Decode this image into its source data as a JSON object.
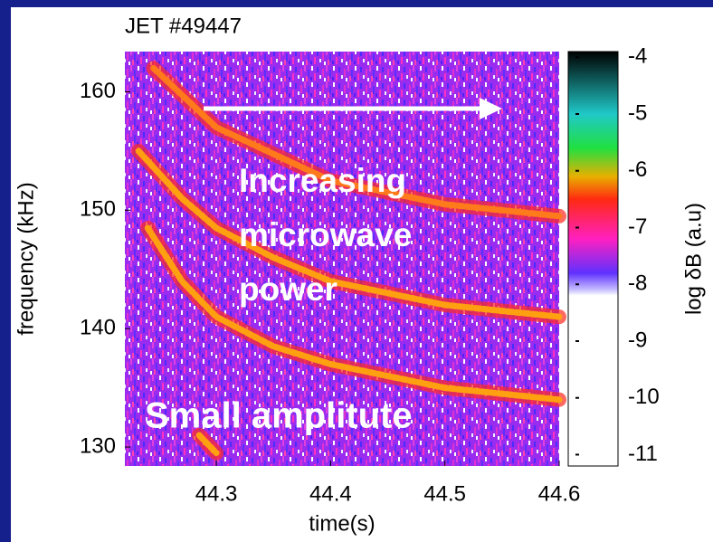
{
  "chart_data": {
    "type": "spectrogram",
    "title": "JET #49447",
    "xlabel": "time(s)",
    "ylabel": "frequency (kHz)",
    "xlim": [
      44.22,
      44.6
    ],
    "xticks": [
      44.3,
      44.4,
      44.5,
      44.6
    ],
    "ylim": [
      128.4,
      163.4
    ],
    "yticks": [
      130,
      140,
      150,
      160
    ],
    "series": [
      {
        "color": "#ff7a1a",
        "x": [
          44.245,
          44.3,
          44.4,
          44.5,
          44.6
        ],
        "values": [
          162,
          157,
          152.5,
          150.5,
          149.5
        ]
      },
      {
        "color": "#ffa010",
        "x": [
          44.232,
          44.27,
          44.3,
          44.35,
          44.4,
          44.5,
          44.6
        ],
        "values": [
          155,
          151,
          148.5,
          146,
          144,
          142,
          141
        ]
      },
      {
        "color": "#ffa010",
        "x": [
          44.24,
          44.27,
          44.3,
          44.35,
          44.4,
          44.5,
          44.6
        ],
        "values": [
          148.5,
          144,
          141,
          138.5,
          137,
          135,
          134
        ]
      },
      {
        "color": "#ffa010",
        "x": [
          44.285,
          44.3
        ],
        "values": [
          131,
          129.5
        ]
      }
    ],
    "colorbar": {
      "label": "log δB (a.u)",
      "lim": [
        -11.2,
        -3.9
      ],
      "ticks": [
        -4,
        -5,
        -6,
        -7,
        -8,
        -9,
        -10,
        -11
      ],
      "stops": [
        {
          "value": -3.9,
          "color": "#000000"
        },
        {
          "value": -5,
          "color": "#20c8c8"
        },
        {
          "value": -5.6,
          "color": "#20e040"
        },
        {
          "value": -6.1,
          "color": "#e8b000"
        },
        {
          "value": -6.5,
          "color": "#ff2a10"
        },
        {
          "value": -7.2,
          "color": "#ff20c0"
        },
        {
          "value": -7.8,
          "color": "#6030ff"
        },
        {
          "value": -8.1,
          "color": "#c8c0ff"
        },
        {
          "value": -8.2,
          "color": "#ffffff"
        },
        {
          "value": -11.2,
          "color": "#ffffff"
        }
      ]
    },
    "annotations": [
      "Increasing",
      "microwave",
      "power",
      "Small amplitute"
    ]
  }
}
